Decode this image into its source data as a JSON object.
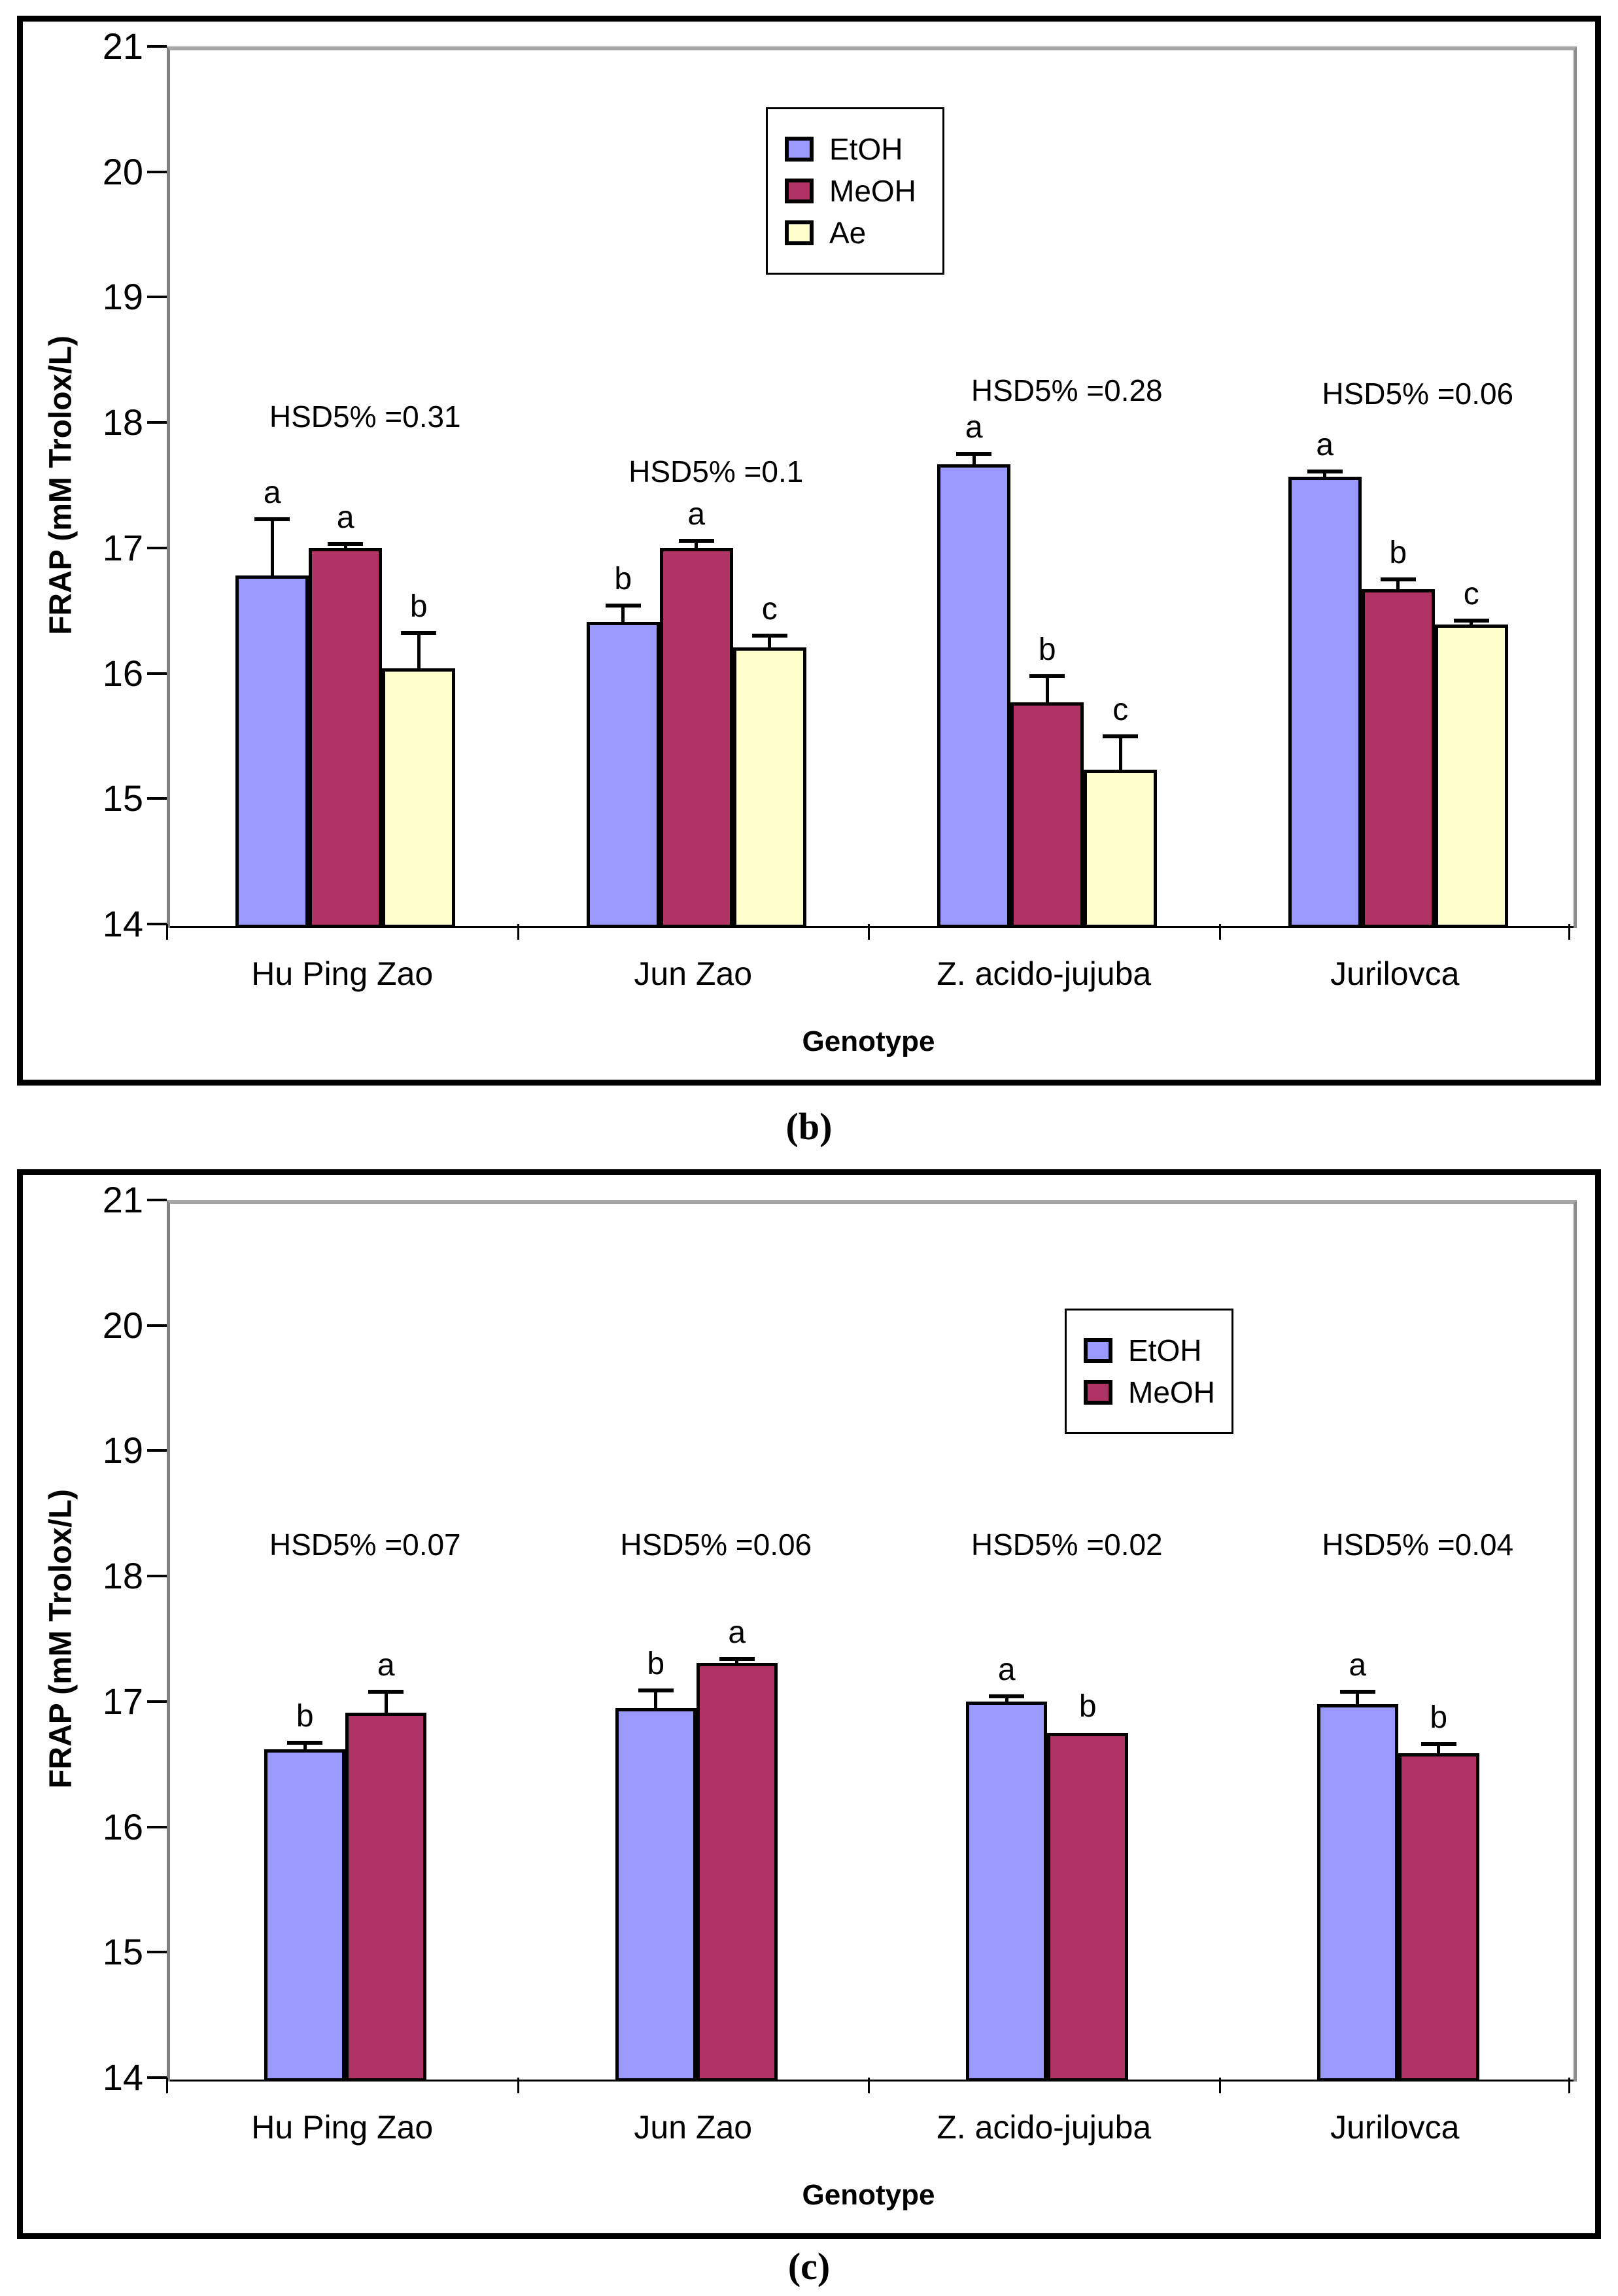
{
  "captions": {
    "panel1": "(b)",
    "panel2": "(c)"
  },
  "colors": {
    "EtOH": "#9999FF",
    "MeOH": "#B03366",
    "Ae": "#FFFFCC",
    "bar_border": "#000000",
    "axis": "#808080",
    "gridline": "#A6A6A6",
    "frame": "#000000"
  },
  "chart_data": [
    {
      "type": "bar",
      "panel": "b",
      "ylabel": "FRAP (mM Trolox/L)",
      "xlabel": "Genotype",
      "ylim": [
        14,
        21
      ],
      "yticks": [
        21,
        20,
        19,
        18,
        17,
        16,
        15,
        14
      ],
      "grid": false,
      "legend_position": "inside-top-center-left",
      "categories": [
        "Hu Ping Zao",
        "Jun Zao",
        "Z. acido-jujuba",
        "Jurilovca"
      ],
      "series": [
        {
          "name": "EtOH",
          "values": [
            16.81,
            16.44,
            17.7,
            17.6
          ],
          "errors": [
            0.45,
            0.13,
            0.08,
            0.04
          ],
          "letters": [
            "a",
            "b",
            "a",
            "a"
          ]
        },
        {
          "name": "MeOH",
          "values": [
            17.03,
            17.03,
            15.8,
            16.7
          ],
          "errors": [
            0.03,
            0.06,
            0.21,
            0.08
          ],
          "letters": [
            "a",
            "a",
            "b",
            "b"
          ]
        },
        {
          "name": "Ae",
          "values": [
            16.07,
            16.24,
            15.26,
            16.42
          ],
          "errors": [
            0.28,
            0.09,
            0.27,
            0.03
          ],
          "letters": [
            "b",
            "c",
            "c",
            "c"
          ]
        }
      ],
      "annotations": [
        {
          "text": "HSD5% =0.31",
          "category_index": 0,
          "value_y": 18.08
        },
        {
          "text": "HSD5% =0.1",
          "category_index": 1,
          "value_y": 17.64
        },
        {
          "text": "HSD5% =0.28",
          "category_index": 2,
          "value_y": 18.29
        },
        {
          "text": "HSD5% =0.06",
          "category_index": 3,
          "value_y": 18.26
        }
      ]
    },
    {
      "type": "bar",
      "panel": "c",
      "ylabel": "FRAP (mM Trolox/L)",
      "xlabel": "Genotype",
      "ylim": [
        14,
        21
      ],
      "yticks": [
        21,
        20,
        19,
        18,
        17,
        16,
        15,
        14
      ],
      "grid": false,
      "legend_position": "inside-top-right",
      "categories": [
        "Hu Ping Zao",
        "Jun Zao",
        "Z. acido-jujuba",
        "Jurilovca"
      ],
      "series": [
        {
          "name": "EtOH",
          "values": [
            16.65,
            16.98,
            17.03,
            17.01
          ],
          "errors": [
            0.05,
            0.14,
            0.04,
            0.1
          ],
          "letters": [
            "b",
            "b",
            "a",
            "a"
          ]
        },
        {
          "name": "MeOH",
          "values": [
            16.94,
            17.34,
            16.78,
            16.62
          ],
          "errors": [
            0.17,
            0.03,
            0.0,
            0.07
          ],
          "letters": [
            "a",
            "a",
            "b",
            "b"
          ]
        }
      ],
      "annotations": [
        {
          "text": "HSD5% =0.07",
          "category_index": 0,
          "value_y": 18.28
        },
        {
          "text": "HSD5% =0.06",
          "category_index": 1,
          "value_y": 18.28
        },
        {
          "text": "HSD5% =0.02",
          "category_index": 2,
          "value_y": 18.28
        },
        {
          "text": "HSD5% =0.04",
          "category_index": 3,
          "value_y": 18.28
        }
      ]
    }
  ]
}
